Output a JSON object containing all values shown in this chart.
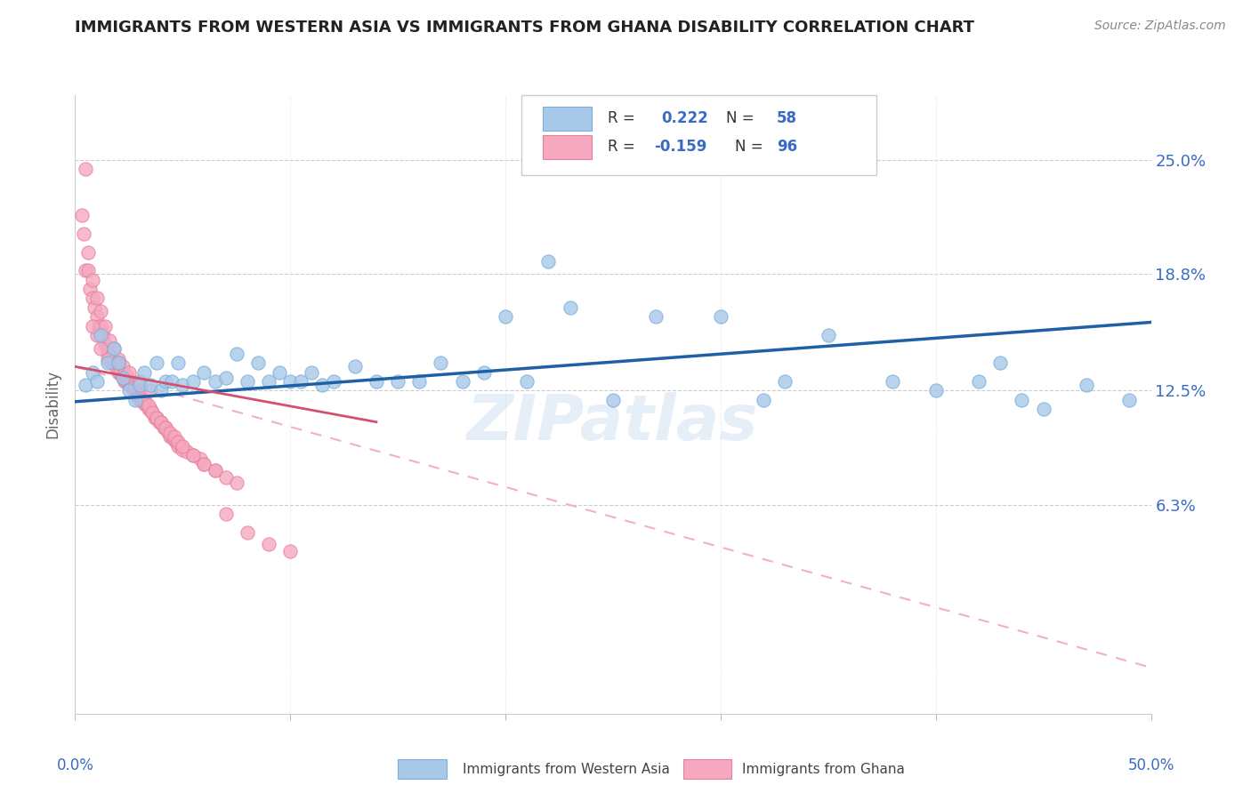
{
  "title": "IMMIGRANTS FROM WESTERN ASIA VS IMMIGRANTS FROM GHANA DISABILITY CORRELATION CHART",
  "source": "Source: ZipAtlas.com",
  "ylabel": "Disability",
  "ytick_values": [
    0.063,
    0.125,
    0.188,
    0.25
  ],
  "ytick_labels": [
    "6.3%",
    "12.5%",
    "18.8%",
    "25.0%"
  ],
  "xlim": [
    0.0,
    0.5
  ],
  "ylim": [
    -0.05,
    0.285
  ],
  "blue_color": "#a8c8e8",
  "blue_edge_color": "#7aaedc",
  "pink_color": "#f5a8c0",
  "pink_edge_color": "#e8809c",
  "blue_line_color": "#1f5fa6",
  "pink_line_color": "#d45070",
  "pink_dash_color": "#f0b0c8",
  "watermark": "ZIPatlas",
  "blue_scatter": [
    [
      0.005,
      0.128
    ],
    [
      0.008,
      0.135
    ],
    [
      0.01,
      0.13
    ],
    [
      0.012,
      0.155
    ],
    [
      0.015,
      0.14
    ],
    [
      0.018,
      0.148
    ],
    [
      0.02,
      0.14
    ],
    [
      0.022,
      0.132
    ],
    [
      0.025,
      0.125
    ],
    [
      0.028,
      0.12
    ],
    [
      0.03,
      0.128
    ],
    [
      0.032,
      0.135
    ],
    [
      0.035,
      0.128
    ],
    [
      0.038,
      0.14
    ],
    [
      0.04,
      0.125
    ],
    [
      0.042,
      0.13
    ],
    [
      0.045,
      0.13
    ],
    [
      0.048,
      0.14
    ],
    [
      0.05,
      0.128
    ],
    [
      0.055,
      0.13
    ],
    [
      0.06,
      0.135
    ],
    [
      0.065,
      0.13
    ],
    [
      0.07,
      0.132
    ],
    [
      0.075,
      0.145
    ],
    [
      0.08,
      0.13
    ],
    [
      0.085,
      0.14
    ],
    [
      0.09,
      0.13
    ],
    [
      0.095,
      0.135
    ],
    [
      0.1,
      0.13
    ],
    [
      0.105,
      0.13
    ],
    [
      0.11,
      0.135
    ],
    [
      0.115,
      0.128
    ],
    [
      0.12,
      0.13
    ],
    [
      0.13,
      0.138
    ],
    [
      0.14,
      0.13
    ],
    [
      0.15,
      0.13
    ],
    [
      0.16,
      0.13
    ],
    [
      0.17,
      0.14
    ],
    [
      0.18,
      0.13
    ],
    [
      0.19,
      0.135
    ],
    [
      0.2,
      0.165
    ],
    [
      0.21,
      0.13
    ],
    [
      0.22,
      0.195
    ],
    [
      0.23,
      0.17
    ],
    [
      0.25,
      0.12
    ],
    [
      0.27,
      0.165
    ],
    [
      0.3,
      0.165
    ],
    [
      0.32,
      0.12
    ],
    [
      0.33,
      0.13
    ],
    [
      0.35,
      0.155
    ],
    [
      0.38,
      0.13
    ],
    [
      0.4,
      0.125
    ],
    [
      0.42,
      0.13
    ],
    [
      0.43,
      0.14
    ],
    [
      0.44,
      0.12
    ],
    [
      0.45,
      0.115
    ],
    [
      0.47,
      0.128
    ],
    [
      0.49,
      0.12
    ]
  ],
  "pink_scatter": [
    [
      0.003,
      0.22
    ],
    [
      0.005,
      0.19
    ],
    [
      0.006,
      0.19
    ],
    [
      0.007,
      0.18
    ],
    [
      0.008,
      0.175
    ],
    [
      0.009,
      0.17
    ],
    [
      0.01,
      0.165
    ],
    [
      0.011,
      0.16
    ],
    [
      0.012,
      0.16
    ],
    [
      0.013,
      0.155
    ],
    [
      0.014,
      0.15
    ],
    [
      0.015,
      0.148
    ],
    [
      0.016,
      0.145
    ],
    [
      0.017,
      0.14
    ],
    [
      0.018,
      0.14
    ],
    [
      0.019,
      0.138
    ],
    [
      0.02,
      0.135
    ],
    [
      0.021,
      0.135
    ],
    [
      0.022,
      0.132
    ],
    [
      0.023,
      0.13
    ],
    [
      0.024,
      0.13
    ],
    [
      0.025,
      0.128
    ],
    [
      0.026,
      0.128
    ],
    [
      0.027,
      0.125
    ],
    [
      0.028,
      0.125
    ],
    [
      0.029,
      0.122
    ],
    [
      0.03,
      0.12
    ],
    [
      0.031,
      0.12
    ],
    [
      0.032,
      0.118
    ],
    [
      0.033,
      0.118
    ],
    [
      0.034,
      0.115
    ],
    [
      0.035,
      0.115
    ],
    [
      0.036,
      0.113
    ],
    [
      0.037,
      0.11
    ],
    [
      0.038,
      0.11
    ],
    [
      0.039,
      0.108
    ],
    [
      0.04,
      0.108
    ],
    [
      0.041,
      0.105
    ],
    [
      0.042,
      0.105
    ],
    [
      0.043,
      0.103
    ],
    [
      0.044,
      0.1
    ],
    [
      0.045,
      0.1
    ],
    [
      0.046,
      0.098
    ],
    [
      0.047,
      0.097
    ],
    [
      0.048,
      0.095
    ],
    [
      0.049,
      0.095
    ],
    [
      0.05,
      0.093
    ],
    [
      0.052,
      0.092
    ],
    [
      0.055,
      0.09
    ],
    [
      0.058,
      0.088
    ],
    [
      0.06,
      0.085
    ],
    [
      0.065,
      0.082
    ],
    [
      0.004,
      0.21
    ],
    [
      0.006,
      0.2
    ],
    [
      0.008,
      0.185
    ],
    [
      0.01,
      0.175
    ],
    [
      0.012,
      0.168
    ],
    [
      0.014,
      0.16
    ],
    [
      0.016,
      0.152
    ],
    [
      0.018,
      0.148
    ],
    [
      0.02,
      0.142
    ],
    [
      0.022,
      0.138
    ],
    [
      0.024,
      0.133
    ],
    [
      0.026,
      0.13
    ],
    [
      0.028,
      0.127
    ],
    [
      0.03,
      0.123
    ],
    [
      0.032,
      0.12
    ],
    [
      0.034,
      0.117
    ],
    [
      0.036,
      0.113
    ],
    [
      0.038,
      0.11
    ],
    [
      0.04,
      0.108
    ],
    [
      0.042,
      0.105
    ],
    [
      0.044,
      0.102
    ],
    [
      0.046,
      0.1
    ],
    [
      0.048,
      0.097
    ],
    [
      0.05,
      0.095
    ],
    [
      0.055,
      0.09
    ],
    [
      0.06,
      0.085
    ],
    [
      0.065,
      0.082
    ],
    [
      0.07,
      0.078
    ],
    [
      0.075,
      0.075
    ],
    [
      0.01,
      0.155
    ],
    [
      0.015,
      0.145
    ],
    [
      0.02,
      0.14
    ],
    [
      0.025,
      0.135
    ],
    [
      0.03,
      0.13
    ],
    [
      0.035,
      0.125
    ],
    [
      0.07,
      0.058
    ],
    [
      0.08,
      0.048
    ],
    [
      0.09,
      0.042
    ],
    [
      0.1,
      0.038
    ],
    [
      0.005,
      0.245
    ],
    [
      0.008,
      0.16
    ],
    [
      0.012,
      0.148
    ],
    [
      0.015,
      0.142
    ]
  ],
  "blue_trend_x": [
    0.0,
    0.5
  ],
  "blue_trend_y": [
    0.119,
    0.162
  ],
  "pink_trend_x": [
    0.0,
    0.14
  ],
  "pink_trend_y": [
    0.138,
    0.108
  ],
  "pink_dash_trend_x": [
    0.0,
    0.5
  ],
  "pink_dash_trend_y": [
    0.138,
    -0.025
  ]
}
